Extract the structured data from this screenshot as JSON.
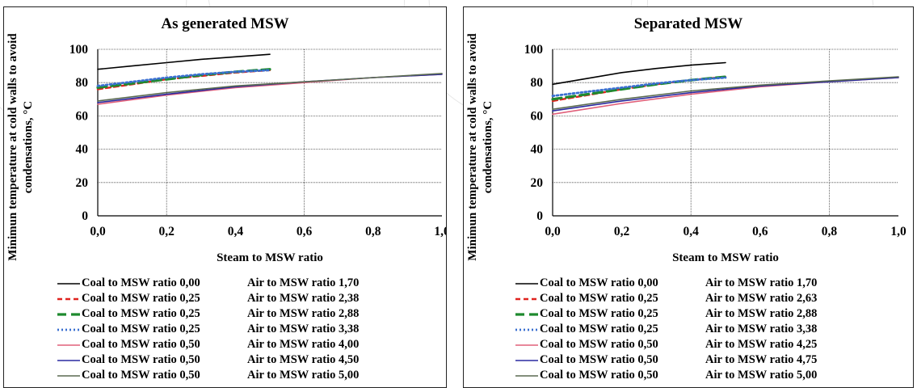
{
  "chart_data": [
    {
      "type": "line",
      "title": "As generated MSW",
      "xlabel": "Steam to MSW ratio",
      "ylabel": "Minimun temperature at cold walls to avoid condensations, °C",
      "xlim": [
        0,
        1.0
      ],
      "ylim": [
        0,
        100
      ],
      "x_ticks": [
        "0,0",
        "0,2",
        "0,4",
        "0,6",
        "0,8",
        "1,0"
      ],
      "y_ticks": [
        "0",
        "20",
        "40",
        "60",
        "80",
        "100"
      ],
      "grid": true,
      "legend_position": "bottom",
      "series": [
        {
          "name": "Coal to MSW ratio 0,00",
          "air": "Air to MSW ratio 1,70",
          "color": "#000000",
          "style": "solid",
          "x": [
            0,
            0.1,
            0.2,
            0.3,
            0.4,
            0.5
          ],
          "values": [
            88,
            90,
            92,
            94,
            95.5,
            97
          ]
        },
        {
          "name": "Coal to MSW ratio 0,25",
          "air": "Air to MSW ratio 2,38",
          "color": "#e0231f",
          "style": "dashed",
          "x": [
            0,
            0.1,
            0.2,
            0.3,
            0.4,
            0.5
          ],
          "values": [
            76,
            79,
            82,
            84,
            86,
            87.5
          ]
        },
        {
          "name": "Coal to MSW ratio 0,25",
          "air": "Air to MSW ratio 2,88",
          "color": "#1e8a2e",
          "style": "longdash",
          "x": [
            0,
            0.1,
            0.2,
            0.3,
            0.4,
            0.5
          ],
          "values": [
            77,
            79.5,
            82,
            84.5,
            86.5,
            88
          ]
        },
        {
          "name": "Coal to MSW ratio 0,25",
          "air": "Air to MSW ratio 3,38",
          "color": "#3a6fd0",
          "style": "dotted",
          "x": [
            0,
            0.1,
            0.2,
            0.3,
            0.4,
            0.5
          ],
          "values": [
            78,
            80.5,
            83,
            85,
            86.5,
            87.5
          ]
        },
        {
          "name": "Coal to MSW ratio 0,50",
          "air": "Air to MSW ratio 4,00",
          "color": "#e0607a",
          "style": "solid",
          "x": [
            0,
            0.2,
            0.4,
            0.6,
            0.8,
            1.0
          ],
          "values": [
            67,
            72.5,
            77,
            80,
            83,
            85
          ]
        },
        {
          "name": "Coal to MSW ratio 0,50",
          "air": "Air to MSW ratio 4,50",
          "color": "#2a2aa0",
          "style": "solid",
          "x": [
            0,
            0.2,
            0.4,
            0.6,
            0.8,
            1.0
          ],
          "values": [
            68,
            73,
            77.5,
            80.5,
            83,
            85
          ]
        },
        {
          "name": "Coal to MSW ratio 0,50",
          "air": "Air to MSW ratio 5,00",
          "color": "#5a6a50",
          "style": "solid",
          "x": [
            0,
            0.2,
            0.4,
            0.6,
            0.8,
            1.0
          ],
          "values": [
            69,
            74,
            78,
            80.5,
            83,
            85.5
          ]
        }
      ]
    },
    {
      "type": "line",
      "title": "Separated MSW",
      "xlabel": "Steam to MSW ratio",
      "ylabel": "Minimun temperature at cold walls to avoid condensations, °C",
      "xlim": [
        0,
        1.0
      ],
      "ylim": [
        0,
        100
      ],
      "x_ticks": [
        "0,0",
        "0,2",
        "0,4",
        "0,6",
        "0,8",
        "1,0"
      ],
      "y_ticks": [
        "0",
        "20",
        "40",
        "60",
        "80",
        "100"
      ],
      "grid": true,
      "legend_position": "bottom",
      "series": [
        {
          "name": "Coal to MSW ratio 0,00",
          "air": "Air to MSW ratio 1,70",
          "color": "#000000",
          "style": "solid",
          "x": [
            0,
            0.1,
            0.2,
            0.3,
            0.4,
            0.5
          ],
          "values": [
            79,
            82.5,
            86,
            88.5,
            90.5,
            92
          ]
        },
        {
          "name": "Coal to MSW ratio 0,25",
          "air": "Air to MSW ratio 2,63",
          "color": "#e0231f",
          "style": "dashed",
          "x": [
            0,
            0.1,
            0.2,
            0.3,
            0.4,
            0.5
          ],
          "values": [
            69,
            72.5,
            76,
            79,
            81.5,
            83.5
          ]
        },
        {
          "name": "Coal to MSW ratio 0,25",
          "air": "Air to MSW ratio 2,88",
          "color": "#1e8a2e",
          "style": "longdash",
          "x": [
            0,
            0.1,
            0.2,
            0.3,
            0.4,
            0.5
          ],
          "values": [
            70,
            73,
            76,
            79,
            81.5,
            83.5
          ]
        },
        {
          "name": "Coal to MSW ratio 0,25",
          "air": "Air to MSW ratio 3,38",
          "color": "#3a6fd0",
          "style": "dotted",
          "x": [
            0,
            0.1,
            0.2,
            0.3,
            0.4,
            0.5
          ],
          "values": [
            72,
            74.5,
            77,
            79.5,
            81.5,
            83
          ]
        },
        {
          "name": "Coal to MSW ratio 0,50",
          "air": "Air to MSW ratio 4,25",
          "color": "#e0607a",
          "style": "solid",
          "x": [
            0,
            0.2,
            0.4,
            0.6,
            0.8,
            1.0
          ],
          "values": [
            61,
            67.5,
            73,
            77.5,
            80.5,
            83
          ]
        },
        {
          "name": "Coal to MSW ratio 0,50",
          "air": "Air to MSW ratio 4,75",
          "color": "#2a2aa0",
          "style": "solid",
          "x": [
            0,
            0.2,
            0.4,
            0.6,
            0.8,
            1.0
          ],
          "values": [
            63,
            69,
            74,
            78,
            80.5,
            83
          ]
        },
        {
          "name": "Coal to MSW ratio 0,50",
          "air": "Air to MSW ratio 5,00",
          "color": "#5a6a50",
          "style": "solid",
          "x": [
            0,
            0.2,
            0.4,
            0.6,
            0.8,
            1.0
          ],
          "values": [
            64,
            70,
            75,
            78.5,
            81,
            83.5
          ]
        }
      ]
    }
  ]
}
